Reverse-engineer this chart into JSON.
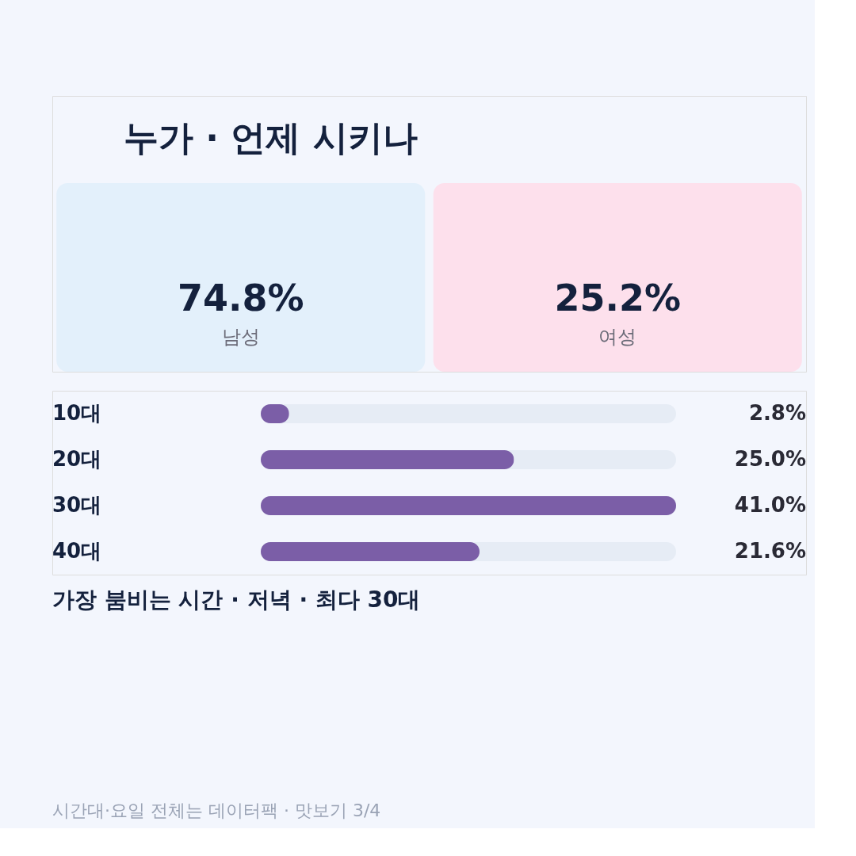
{
  "chart_data": [
    {
      "type": "other",
      "title": "누가 · 언제 시키나",
      "categories": [
        "남성",
        "여성"
      ],
      "values": [
        74.8,
        25.2
      ],
      "value_labels": [
        "74.8%",
        "25.2%"
      ],
      "colors": [
        "#e3f0fb",
        "#fde0ec"
      ]
    },
    {
      "type": "bar",
      "orientation": "horizontal",
      "categories": [
        "10대",
        "20대",
        "30대",
        "40대"
      ],
      "values": [
        2.8,
        25.0,
        41.0,
        21.6
      ],
      "value_labels": [
        "2.8%",
        "25.0%",
        "41.0%",
        "21.6%"
      ],
      "color": "#7b5ea7",
      "annotations": [
        "가장 붐비는 시간 · 저녁 · 최다 30대",
        "시간대·요일 전체는 데이터팩 · 맛보기 3/4"
      ]
    }
  ]
}
